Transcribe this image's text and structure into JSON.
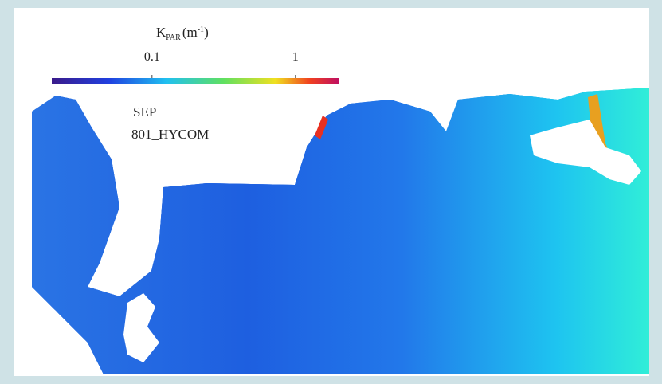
{
  "colorbar": {
    "title": {
      "symbol": "K",
      "subscript": "PAR",
      "unit": "(m",
      "exponent": "-1",
      "close": ")"
    },
    "scale": "log",
    "lim": [
      0.02,
      2
    ],
    "ticks": [
      0.1,
      1
    ]
  },
  "labels": {
    "month": "SEP",
    "model": "801_HYCOM"
  }
}
